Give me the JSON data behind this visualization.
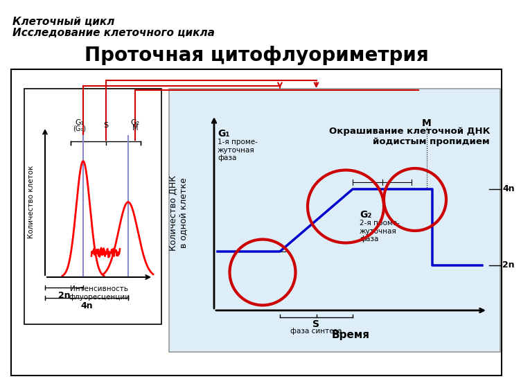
{
  "title_line1": "Клеточный цикл",
  "title_line2": "Исследование клеточного цикла",
  "title_main": "Проточная цитофлуориметрия",
  "bg_color": "#ffffff",
  "arrow_color": "#cc0000",
  "blue_line_color": "#0000cc",
  "circle_color": "#cc0000",
  "left_ylabel": "Количество клеток",
  "left_xlabel": "Интенсивность\nфлуоресценции",
  "left_2n": "2n",
  "left_4n": "4n",
  "right_ylabel": "Количество ДНК\nв одной клетке",
  "right_xlabel": "Время",
  "right_4n": "4n",
  "right_2n": "2n",
  "annotation_text": "Окрашивание клеточной ДНК\nйодистым пропидием"
}
